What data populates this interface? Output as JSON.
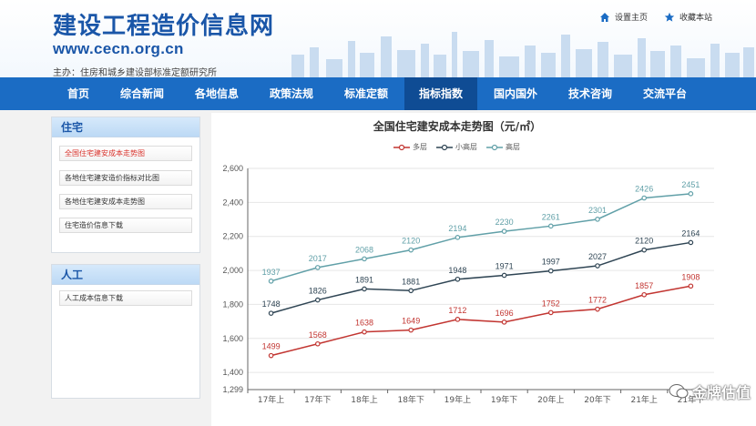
{
  "site": {
    "title": "建设工程造价信息网",
    "url": "www.cecn.org.cn",
    "sponsor": "主办：住房和城乡建设部标准定额研究所"
  },
  "top_links": {
    "home": "设置主页",
    "favorite": "收藏本站"
  },
  "nav": {
    "items": [
      "首页",
      "综合新闻",
      "各地信息",
      "政策法规",
      "标准定额",
      "指标指数",
      "国内国外",
      "技术咨询",
      "交流平台"
    ],
    "active_index": 5
  },
  "sidebar": {
    "residential": {
      "title": "住宅",
      "items": [
        "全国住宅建安成本走势图",
        "各地住宅建安造价指标对比图",
        "各地住宅建安成本走势图",
        "住宅造价信息下载"
      ],
      "active_index": 0
    },
    "labor": {
      "title": "人工",
      "items": [
        "人工成本信息下载"
      ]
    }
  },
  "chart_data": {
    "type": "line",
    "title": "全国住宅建安成本走势图（元/㎡）",
    "categories": [
      "17年上",
      "17年下",
      "18年上",
      "18年下",
      "19年上",
      "19年下",
      "20年上",
      "20年下",
      "21年上",
      "21年下"
    ],
    "series": [
      {
        "name": "多层",
        "color": "#c23531",
        "values": [
          1499,
          1568,
          1638,
          1649,
          1712,
          1696,
          1752,
          1772,
          1857,
          1908
        ]
      },
      {
        "name": "小高层",
        "color": "#2f4554",
        "values": [
          1748,
          1826,
          1891,
          1881,
          1948,
          1971,
          1997,
          2027,
          2120,
          2164
        ]
      },
      {
        "name": "高层",
        "color": "#61a0a8",
        "values": [
          1937,
          2017,
          2068,
          2120,
          2194,
          2230,
          2261,
          2301,
          2426,
          2451
        ]
      }
    ],
    "yticks": [
      1299,
      1400,
      1600,
      1800,
      2000,
      2200,
      2400,
      2600
    ],
    "ytick_labels": [
      "1,299",
      "1,400",
      "1,600",
      "1,800",
      "2,000",
      "2,200",
      "2,400",
      "2,600"
    ],
    "ylim": [
      1299,
      2600
    ],
    "grid": true,
    "legend_position": "top-center"
  },
  "watermark": "金牌估值",
  "colors": {
    "brand_blue": "#1a56a8",
    "nav_bg": "#1b6cc4",
    "nav_active": "#0f4c94",
    "active_link": "#d9322b"
  }
}
